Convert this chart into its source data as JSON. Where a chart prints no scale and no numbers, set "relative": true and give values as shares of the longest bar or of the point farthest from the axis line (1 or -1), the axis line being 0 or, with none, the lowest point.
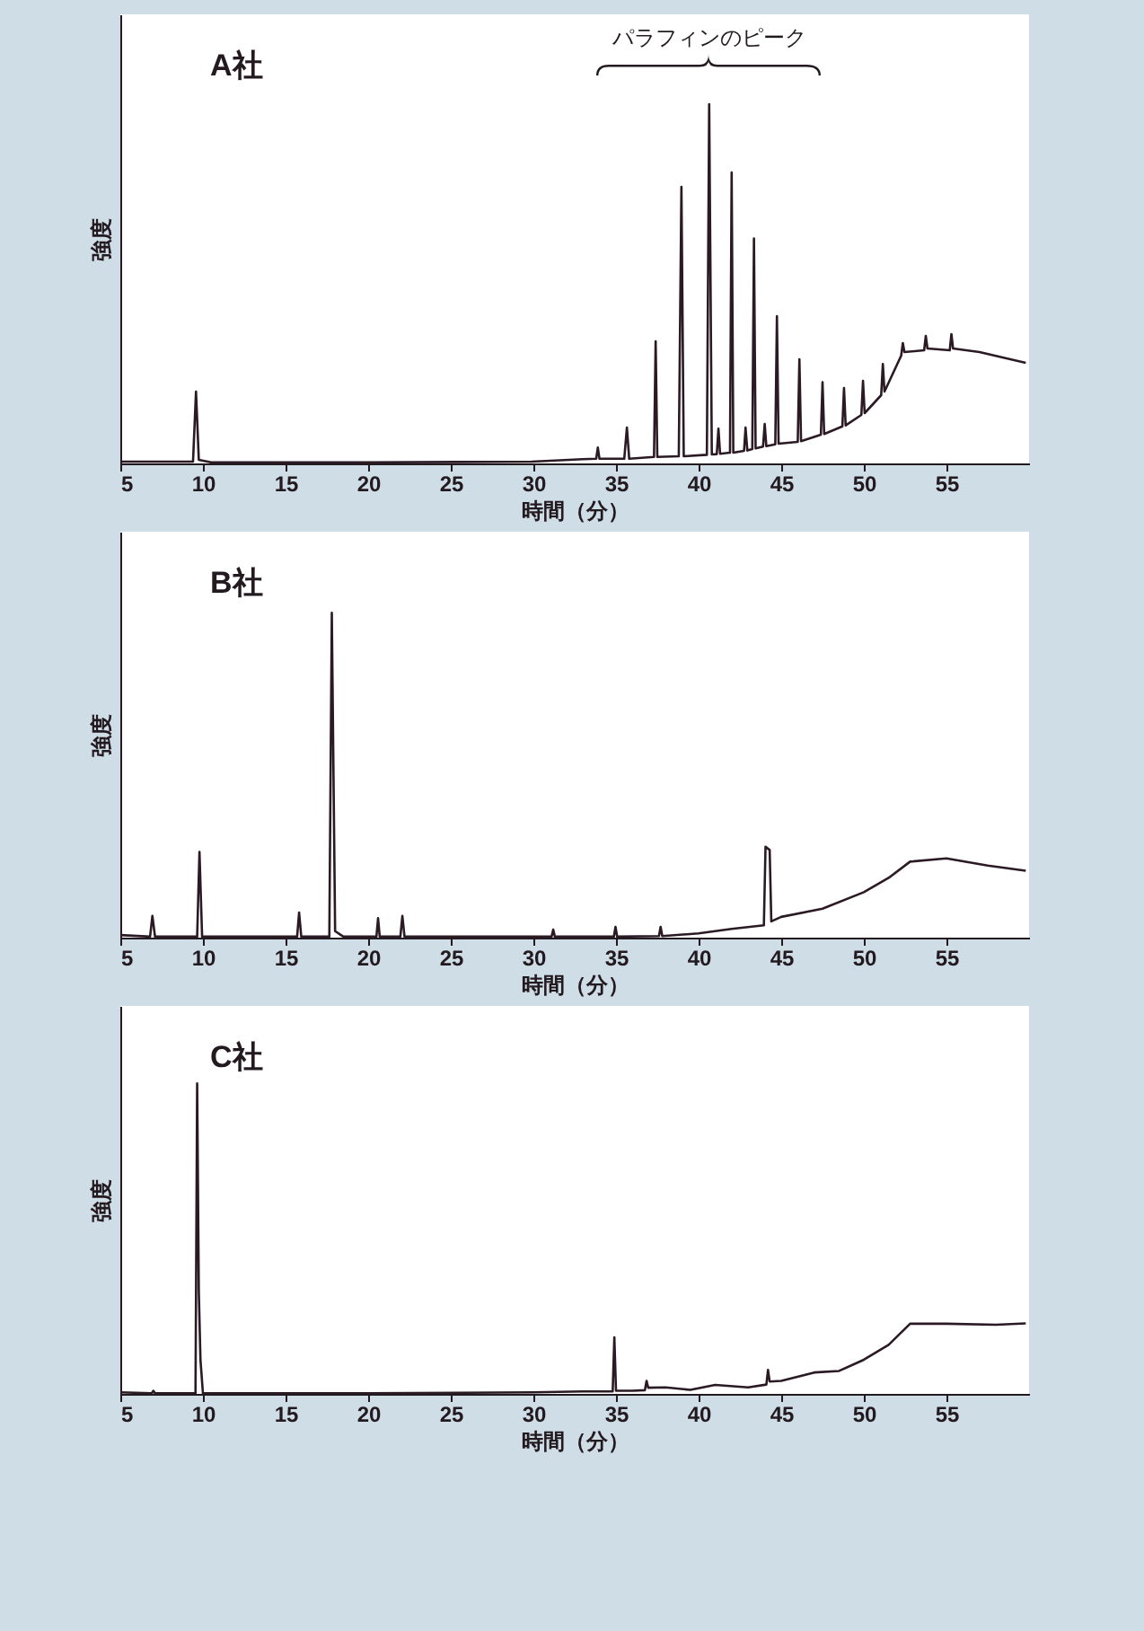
{
  "chart_data": [
    {
      "type": "line",
      "title": "A社",
      "xlabel": "時間（分）",
      "ylabel": "強度",
      "relative": true,
      "tick_labels": "x",
      "color": "#2b1a24",
      "xlim": [
        5,
        60
      ],
      "xticks": [
        5,
        10,
        15,
        20,
        25,
        30,
        35,
        40,
        45,
        50,
        55
      ],
      "annotations": [
        {
          "text": "パラフィンのピーク",
          "x": 40.64,
          "y": 1
        }
      ],
      "x": [
        5,
        9.4,
        9.58,
        9.75,
        10.5,
        20,
        29.9,
        33,
        33.8,
        33.9,
        34.0,
        35.5,
        35.66,
        35.8,
        37.3,
        37.4,
        37.5,
        38.8,
        38.96,
        39.1,
        40.5,
        40.64,
        40.8,
        41.1,
        41.2,
        41.3,
        41.9,
        42.0,
        42.1,
        42.75,
        42.84,
        42.95,
        43.25,
        43.35,
        43.45,
        43.9,
        44.0,
        44.1,
        44.64,
        44.74,
        44.84,
        46.0,
        46.1,
        46.2,
        47.4,
        47.5,
        47.6,
        48.7,
        48.8,
        48.9,
        49.85,
        49.95,
        50.05,
        51.05,
        51.15,
        51.25,
        52.26,
        52.36,
        52.46,
        53.65,
        53.75,
        53.85,
        55.2,
        55.3,
        55.4,
        57,
        59.8
      ],
      "values": [
        0.005,
        0.005,
        0.2,
        0.01,
        0.003,
        0.003,
        0.005,
        0.012,
        0.013,
        0.044,
        0.013,
        0.013,
        0.1,
        0.013,
        0.018,
        0.34,
        0.018,
        0.02,
        0.77,
        0.02,
        0.024,
        1,
        0.025,
        0.026,
        0.097,
        0.027,
        0.03,
        0.81,
        0.03,
        0.035,
        0.1,
        0.036,
        0.04,
        0.626,
        0.042,
        0.047,
        0.11,
        0.048,
        0.053,
        0.41,
        0.055,
        0.06,
        0.29,
        0.062,
        0.08,
        0.226,
        0.082,
        0.103,
        0.21,
        0.106,
        0.135,
        0.23,
        0.14,
        0.19,
        0.277,
        0.2,
        0.3,
        0.335,
        0.31,
        0.315,
        0.355,
        0.32,
        0.315,
        0.36,
        0.32,
        0.31,
        0.28
      ]
    },
    {
      "type": "line",
      "title": "B社",
      "xlabel": "時間（分）",
      "ylabel": "強度",
      "relative": true,
      "tick_labels": "x",
      "color": "#2b1a24",
      "xlim": [
        5,
        60
      ],
      "xticks": [
        5,
        10,
        15,
        20,
        25,
        30,
        35,
        40,
        45,
        50,
        55
      ],
      "x": [
        5,
        6.8,
        6.94,
        7.1,
        9.65,
        9.79,
        9.95,
        15.7,
        15.82,
        15.95,
        17.65,
        17.8,
        18.0,
        18.5,
        20.5,
        20.6,
        20.7,
        21.95,
        22.07,
        22.2,
        31.1,
        31.2,
        31.3,
        34.87,
        34.97,
        35.07,
        37.6,
        37.7,
        37.8,
        40,
        42,
        43.95,
        44.05,
        44.3,
        44.4,
        45,
        47.5,
        50,
        51.5,
        52.8,
        55,
        57.5,
        59.8
      ],
      "values": [
        0.008,
        0.003,
        0.067,
        0.003,
        0.003,
        0.264,
        0.003,
        0.003,
        0.077,
        0.003,
        0.003,
        1,
        0.02,
        0.003,
        0.003,
        0.06,
        0.003,
        0.003,
        0.067,
        0.003,
        0.003,
        0.025,
        0.003,
        0.003,
        0.033,
        0.003,
        0.005,
        0.033,
        0.005,
        0.013,
        0.027,
        0.038,
        0.28,
        0.27,
        0.05,
        0.064,
        0.089,
        0.14,
        0.184,
        0.234,
        0.244,
        0.222,
        0.206
      ]
    },
    {
      "type": "line",
      "title": "C社",
      "xlabel": "時間（分）",
      "ylabel": "強度",
      "relative": true,
      "tick_labels": "x",
      "color": "#2b1a24",
      "xlim": [
        5,
        60
      ],
      "xticks": [
        5,
        10,
        15,
        20,
        25,
        30,
        35,
        40,
        45,
        50,
        55
      ],
      "x": [
        5,
        6.9,
        7.0,
        7.1,
        9.55,
        9.65,
        9.75,
        9.85,
        10.0,
        20,
        30,
        33,
        34.8,
        34.9,
        35.0,
        36,
        36.75,
        36.85,
        36.95,
        38,
        39.5,
        41,
        43,
        44.1,
        44.2,
        44.3,
        45,
        47,
        48.5,
        50,
        51.5,
        52.8,
        55,
        58,
        59.8
      ],
      "values": [
        0.005,
        0.002,
        0.01,
        0.002,
        0.002,
        1,
        0.33,
        0.11,
        0.002,
        0.002,
        0.005,
        0.008,
        0.008,
        0.182,
        0.01,
        0.01,
        0.012,
        0.042,
        0.02,
        0.021,
        0.013,
        0.029,
        0.021,
        0.03,
        0.077,
        0.04,
        0.042,
        0.069,
        0.074,
        0.11,
        0.158,
        0.226,
        0.226,
        0.223,
        0.227
      ]
    }
  ]
}
